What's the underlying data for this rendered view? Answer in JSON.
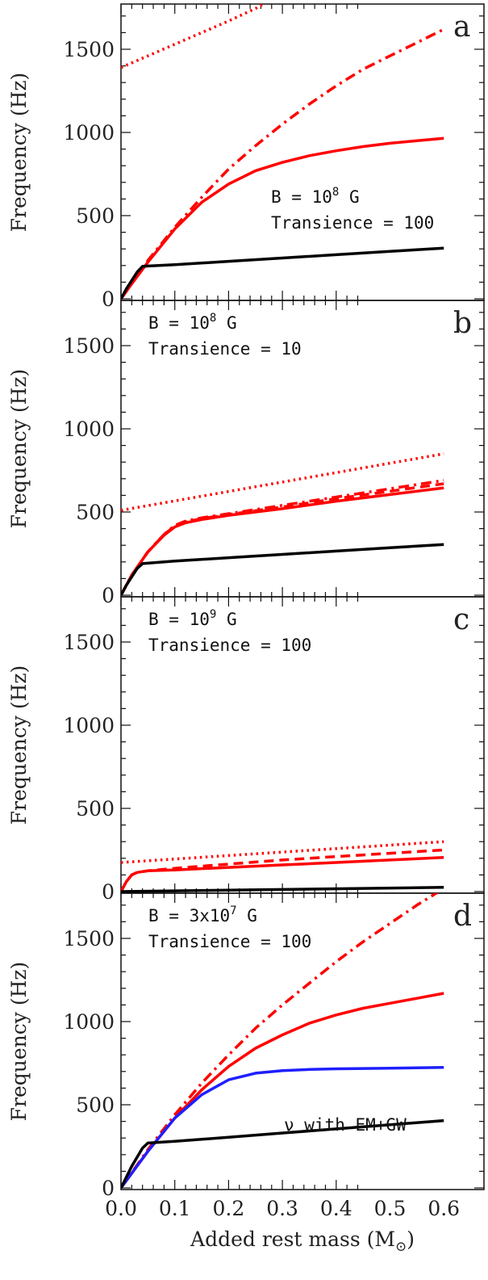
{
  "chart_data": [
    {
      "panel": "a",
      "type": "line",
      "ylabel": "Frequency (Hz)",
      "xlim": [
        0.0,
        0.7
      ],
      "ylim": [
        0,
        1800
      ],
      "annotation": [
        "B = 10^8 G",
        "Transience = 100"
      ],
      "series": [
        {
          "color": "#ff0000",
          "style": "solid",
          "x": [
            0.0,
            0.02,
            0.05,
            0.1,
            0.15,
            0.2,
            0.25,
            0.3,
            0.35,
            0.4,
            0.45,
            0.5,
            0.55,
            0.6
          ],
          "y": [
            0,
            90,
            220,
            420,
            580,
            690,
            770,
            820,
            860,
            890,
            915,
            935,
            950,
            965
          ]
        },
        {
          "color": "#ff0000",
          "style": "dashdot",
          "x": [
            0.0,
            0.05,
            0.1,
            0.15,
            0.2,
            0.25,
            0.3,
            0.35,
            0.4,
            0.45,
            0.5,
            0.55,
            0.6
          ],
          "y": [
            0,
            230,
            430,
            610,
            780,
            920,
            1050,
            1170,
            1280,
            1380,
            1460,
            1540,
            1620
          ]
        },
        {
          "color": "#ff0000",
          "style": "dotted",
          "x": [
            0.0,
            0.05,
            0.1,
            0.15,
            0.2,
            0.25,
            0.28
          ],
          "y": [
            1390,
            1460,
            1530,
            1600,
            1670,
            1745,
            1800
          ]
        },
        {
          "color": "#000000",
          "style": "solid",
          "x": [
            0.0,
            0.01,
            0.02,
            0.03,
            0.04,
            0.1,
            0.2,
            0.3,
            0.4,
            0.5,
            0.6
          ],
          "y": [
            0,
            60,
            110,
            160,
            195,
            205,
            225,
            245,
            265,
            285,
            305
          ]
        }
      ]
    },
    {
      "panel": "b",
      "type": "line",
      "ylabel": "Frequency (Hz)",
      "xlim": [
        0.0,
        0.7
      ],
      "ylim": [
        0,
        1800
      ],
      "annotation": [
        "B = 10^8 G",
        "Transience = 10"
      ],
      "series": [
        {
          "color": "#ff0000",
          "style": "solid",
          "x": [
            0.0,
            0.02,
            0.05,
            0.08,
            0.1,
            0.12,
            0.15,
            0.2,
            0.3,
            0.4,
            0.5,
            0.6
          ],
          "y": [
            0,
            120,
            260,
            360,
            410,
            435,
            455,
            480,
            520,
            565,
            605,
            645
          ]
        },
        {
          "color": "#ff0000",
          "style": "dashed",
          "x": [
            0.0,
            0.02,
            0.05,
            0.08,
            0.1,
            0.12,
            0.15,
            0.2,
            0.3,
            0.4,
            0.5,
            0.6
          ],
          "y": [
            0,
            120,
            260,
            365,
            415,
            440,
            460,
            485,
            530,
            580,
            625,
            670
          ]
        },
        {
          "color": "#ff0000",
          "style": "dashdot",
          "x": [
            0.0,
            0.02,
            0.05,
            0.08,
            0.1,
            0.12,
            0.15,
            0.2,
            0.3,
            0.4,
            0.5,
            0.6
          ],
          "y": [
            0,
            120,
            260,
            365,
            420,
            445,
            465,
            490,
            540,
            590,
            640,
            690
          ]
        },
        {
          "color": "#ff0000",
          "style": "dotted",
          "x": [
            0.0,
            0.6
          ],
          "y": [
            510,
            850
          ]
        },
        {
          "color": "#000000",
          "style": "solid",
          "x": [
            0.0,
            0.01,
            0.02,
            0.03,
            0.04,
            0.1,
            0.2,
            0.3,
            0.4,
            0.5,
            0.6
          ],
          "y": [
            0,
            60,
            110,
            160,
            190,
            205,
            225,
            245,
            265,
            285,
            305
          ]
        }
      ]
    },
    {
      "panel": "c",
      "type": "line",
      "ylabel": "Frequency (Hz)",
      "xlim": [
        0.0,
        0.7
      ],
      "ylim": [
        0,
        1800
      ],
      "annotation": [
        "B = 10^9 G",
        "Transience = 100"
      ],
      "series": [
        {
          "color": "#ff0000",
          "style": "solid",
          "x": [
            0.0,
            0.01,
            0.02,
            0.03,
            0.05,
            0.1,
            0.2,
            0.3,
            0.4,
            0.5,
            0.6
          ],
          "y": [
            0,
            60,
            100,
            115,
            125,
            130,
            145,
            160,
            175,
            190,
            205
          ]
        },
        {
          "color": "#ff0000",
          "style": "dashed",
          "x": [
            0.0,
            0.01,
            0.02,
            0.03,
            0.05,
            0.1,
            0.2,
            0.3,
            0.4,
            0.5,
            0.6
          ],
          "y": [
            0,
            60,
            100,
            115,
            125,
            140,
            165,
            190,
            210,
            230,
            250
          ]
        },
        {
          "color": "#ff0000",
          "style": "dotted",
          "x": [
            0.0,
            0.6
          ],
          "y": [
            175,
            300
          ]
        },
        {
          "color": "#000000",
          "style": "solid",
          "x": [
            0.0,
            0.6
          ],
          "y": [
            0,
            25
          ]
        }
      ]
    },
    {
      "panel": "d",
      "type": "line",
      "ylabel": "Frequency (Hz)",
      "xlabel": "Added rest mass (M⊙)",
      "xlim": [
        0.0,
        0.7
      ],
      "ylim": [
        0,
        1800
      ],
      "xticks": [
        "0.0",
        "0.1",
        "0.2",
        "0.3",
        "0.4",
        "0.5",
        "0.6"
      ],
      "annotation": [
        "B = 3x10^7 G",
        "Transience = 100"
      ],
      "series": [
        {
          "color": "#ff0000",
          "style": "solid",
          "x": [
            0.0,
            0.05,
            0.1,
            0.15,
            0.2,
            0.25,
            0.3,
            0.35,
            0.4,
            0.45,
            0.5,
            0.55,
            0.6
          ],
          "y": [
            0,
            220,
            420,
            590,
            730,
            840,
            920,
            990,
            1040,
            1080,
            1110,
            1140,
            1170
          ]
        },
        {
          "color": "#ff0000",
          "style": "dashdot",
          "x": [
            0.0,
            0.05,
            0.1,
            0.15,
            0.2,
            0.25,
            0.3,
            0.35,
            0.4,
            0.45,
            0.5,
            0.55,
            0.6
          ],
          "y": [
            0,
            230,
            440,
            630,
            800,
            960,
            1100,
            1230,
            1360,
            1480,
            1590,
            1700,
            1800
          ]
        },
        {
          "color": "#1f1fff",
          "style": "solid",
          "label": "ν with EM+GW",
          "x": [
            0.0,
            0.05,
            0.1,
            0.15,
            0.2,
            0.25,
            0.3,
            0.35,
            0.4,
            0.5,
            0.6
          ],
          "y": [
            0,
            220,
            420,
            560,
            650,
            690,
            705,
            712,
            716,
            720,
            725
          ]
        },
        {
          "color": "#000000",
          "style": "solid",
          "x": [
            0.0,
            0.02,
            0.04,
            0.05,
            0.1,
            0.2,
            0.3,
            0.4,
            0.5,
            0.6
          ],
          "y": [
            0,
            130,
            240,
            270,
            280,
            305,
            330,
            355,
            380,
            405
          ]
        }
      ]
    }
  ],
  "figure": {
    "ylabel": "Frequency (Hz)",
    "xlabel_text": "Added rest mass (M",
    "xlabel_close": ")",
    "sun_symbol": "⊙",
    "yticks": [
      "0",
      "500",
      "1000",
      "1500"
    ],
    "xticks": [
      "0.0",
      "0.1",
      "0.2",
      "0.3",
      "0.4",
      "0.5",
      "0.6"
    ],
    "panel_letters": [
      "a",
      "b",
      "c",
      "d"
    ],
    "annotations": [
      {
        "line1_pre": "B = 10",
        "line1_exp": "8",
        "line1_post": " G",
        "line2": "Transience = 100"
      },
      {
        "line1_pre": "B = 10",
        "line1_exp": "8",
        "line1_post": " G",
        "line2": "Transience = 10"
      },
      {
        "line1_pre": "B = 10",
        "line1_exp": "9",
        "line1_post": " G",
        "line2": "Transience = 100"
      },
      {
        "line1_pre": "B = 3x10",
        "line1_exp": "7",
        "line1_post": " G",
        "line2": "Transience = 100"
      }
    ],
    "blue_label": "ν with EM+GW"
  }
}
